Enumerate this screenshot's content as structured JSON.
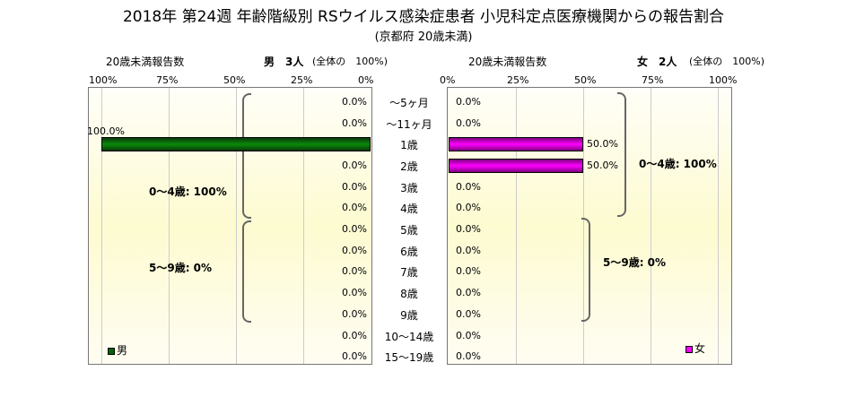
{
  "chart_data": {
    "type": "bar",
    "title": "2018年 第24週 年齢階級別 RSウイルス感染症患者 小児科定点医療機関からの報告割合",
    "subtitle": "(京都府 20歳未満)",
    "categories": [
      "～5ヶ月",
      "～11ヶ月",
      "1歳",
      "2歳",
      "3歳",
      "4歳",
      "5歳",
      "6歳",
      "7歳",
      "8歳",
      "9歳",
      "10～14歳",
      "15～19歳"
    ],
    "series": [
      {
        "name": "男",
        "color": "#006400",
        "values": [
          0,
          0,
          100,
          0,
          0,
          0,
          0,
          0,
          0,
          0,
          0,
          0,
          0
        ],
        "labels": [
          "0.0%",
          "0.0%",
          "100.0%",
          "0.0%",
          "0.0%",
          "0.0%",
          "0.0%",
          "0.0%",
          "0.0%",
          "0.0%",
          "0.0%",
          "0.0%",
          "0.0%"
        ]
      },
      {
        "name": "女",
        "color": "#ff00ff",
        "values": [
          0,
          0,
          50,
          50,
          0,
          0,
          0,
          0,
          0,
          0,
          0,
          0,
          0
        ],
        "labels": [
          "0.0%",
          "0.0%",
          "50.0%",
          "50.0%",
          "0.0%",
          "0.0%",
          "0.0%",
          "0.0%",
          "0.0%",
          "0.0%",
          "0.0%",
          "0.0%",
          "0.0%"
        ]
      }
    ],
    "xlim": [
      0,
      100
    ],
    "male_ticks": [
      "100%",
      "75%",
      "50%",
      "25%",
      "0%"
    ],
    "female_ticks": [
      "0%",
      "25%",
      "50%",
      "75%",
      "100%"
    ],
    "male_header": {
      "left": "20歳未満報告数",
      "count": "男　3人",
      "share": "(全体の　100%)"
    },
    "female_header": {
      "left": "20歳未満報告数",
      "count": "女　2人",
      "share": "(全体の　100%)"
    },
    "groups": {
      "male_0_4": "0～4歳: 100%",
      "male_5_9": "5～9歳: 0%",
      "female_0_4": "0～4歳: 100%",
      "female_5_9": "5～9歳: 0%"
    },
    "legend": {
      "male": "男",
      "female": "女"
    }
  }
}
